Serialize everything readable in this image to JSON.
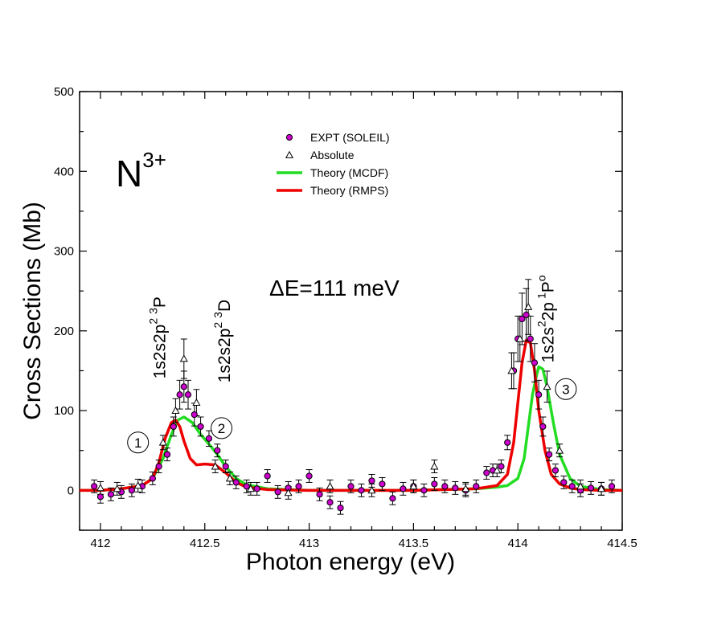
{
  "chart_data": {
    "type": "scatter",
    "title": "",
    "xlabel": "Photon energy (eV)",
    "ylabel": "Cross Sections (Mb)",
    "xlim": [
      411.9,
      414.5
    ],
    "ylim": [
      -50,
      500
    ],
    "x_ticks": [
      412,
      412.5,
      413,
      413.5,
      414,
      414.5
    ],
    "x_tick_labels": [
      "412",
      "412.5",
      "413",
      "413.5",
      "414",
      "414.5"
    ],
    "y_ticks": [
      0,
      100,
      200,
      300,
      400,
      500
    ],
    "y_tick_labels": [
      "0",
      "100",
      "200",
      "300",
      "400",
      "500"
    ],
    "ion_label": {
      "base": "N",
      "sup": "3+"
    },
    "resolution_label": "ΔE=111 meV",
    "annotations": [
      {
        "base": "1s2s2p",
        "sup1": "2",
        "sup2": "3",
        "term": "P",
        "x": 412.31,
        "y": 140
      },
      {
        "base": "1s2s2p",
        "sup1": "2",
        "sup2": "3",
        "term": "D",
        "x": 412.62,
        "y": 135
      },
      {
        "base": "1s2s",
        "sup1": "2",
        "mid": "2p",
        "sup2": "1",
        "term": "P",
        "sup3": "o",
        "x": 414.17,
        "y": 160
      }
    ],
    "peak_markers": [
      {
        "label": "1",
        "x": 412.18,
        "y": 60
      },
      {
        "label": "2",
        "x": 412.58,
        "y": 78
      },
      {
        "label": "3",
        "x": 414.23,
        "y": 127
      }
    ],
    "legend": {
      "position": "top-center",
      "entries": [
        {
          "label": "EXPT (SOLEIL)",
          "marker": "circle",
          "color": "#cc00cc"
        },
        {
          "label": "Absolute",
          "marker": "triangle",
          "color": "#000000"
        },
        {
          "label": "Theory (MCDF)",
          "marker": "line",
          "color": "#22dd22"
        },
        {
          "label": "Theory (RMPS)",
          "marker": "line",
          "color": "#ee0000"
        }
      ]
    },
    "series": [
      {
        "name": "EXPT (SOLEIL)",
        "kind": "points",
        "marker": "circle",
        "color": "#cc00cc",
        "x": [
          411.97,
          412.0,
          412.05,
          412.1,
          412.15,
          412.2,
          412.25,
          412.28,
          412.32,
          412.35,
          412.38,
          412.4,
          412.42,
          412.45,
          412.48,
          412.52,
          412.56,
          412.6,
          412.65,
          412.7,
          412.75,
          412.8,
          412.85,
          412.9,
          412.95,
          413.0,
          413.05,
          413.1,
          413.15,
          413.2,
          413.25,
          413.3,
          413.35,
          413.4,
          413.45,
          413.5,
          413.55,
          413.6,
          413.65,
          413.7,
          413.75,
          413.8,
          413.85,
          413.88,
          413.92,
          413.95,
          413.98,
          414.0,
          414.02,
          414.04,
          414.06,
          414.08,
          414.1,
          414.12,
          414.15,
          414.18,
          414.22,
          414.26,
          414.3,
          414.35,
          414.4,
          414.45
        ],
        "y": [
          5,
          -8,
          -5,
          -2,
          0,
          5,
          15,
          30,
          45,
          80,
          120,
          130,
          120,
          95,
          80,
          65,
          50,
          30,
          10,
          5,
          2,
          18,
          -2,
          3,
          5,
          18,
          -5,
          -15,
          -22,
          5,
          0,
          12,
          8,
          -10,
          2,
          5,
          0,
          8,
          5,
          3,
          0,
          5,
          22,
          25,
          30,
          60,
          150,
          190,
          215,
          220,
          190,
          160,
          120,
          80,
          45,
          25,
          10,
          5,
          0,
          3,
          2,
          5
        ]
      },
      {
        "name": "Absolute",
        "kind": "points",
        "marker": "triangle",
        "color": "#000000",
        "x": [
          412.0,
          412.08,
          412.18,
          412.3,
          412.36,
          412.4,
          412.46,
          412.55,
          412.62,
          412.72,
          412.9,
          413.1,
          413.3,
          413.5,
          413.6,
          413.75,
          413.9,
          413.97,
          414.01,
          414.05,
          414.14,
          414.2,
          414.3,
          414.4
        ],
        "y": [
          3,
          2,
          6,
          60,
          100,
          165,
          110,
          30,
          15,
          2,
          -3,
          5,
          0,
          5,
          30,
          2,
          25,
          150,
          190,
          230,
          130,
          50,
          5,
          2
        ]
      },
      {
        "name": "Theory (MCDF)",
        "kind": "line",
        "color": "#22dd22",
        "x": [
          411.9,
          412.0,
          412.1,
          412.2,
          412.25,
          412.3,
          412.34,
          412.37,
          412.4,
          412.44,
          412.48,
          412.52,
          412.56,
          412.6,
          412.65,
          412.7,
          412.8,
          413.0,
          413.5,
          413.8,
          413.9,
          413.95,
          414.0,
          414.03,
          414.05,
          414.07,
          414.09,
          414.1,
          414.12,
          414.14,
          414.17,
          414.2,
          414.25,
          414.3,
          414.4,
          414.5
        ],
        "y": [
          0,
          0,
          2,
          6,
          15,
          40,
          70,
          88,
          92,
          85,
          70,
          58,
          45,
          30,
          15,
          7,
          2,
          0,
          0,
          2,
          4,
          6,
          15,
          40,
          80,
          120,
          145,
          155,
          152,
          130,
          85,
          45,
          15,
          5,
          1,
          0
        ]
      },
      {
        "name": "Theory (RMPS)",
        "kind": "line",
        "color": "#ee0000",
        "x": [
          411.9,
          412.0,
          412.1,
          412.2,
          412.25,
          412.28,
          412.31,
          412.34,
          412.36,
          412.38,
          412.4,
          412.43,
          412.46,
          412.5,
          412.55,
          412.6,
          412.65,
          412.7,
          412.8,
          413.0,
          413.5,
          413.8,
          413.9,
          413.95,
          413.98,
          414.0,
          414.02,
          414.04,
          414.06,
          414.08,
          414.1,
          414.13,
          414.16,
          414.2,
          414.25,
          414.3,
          414.4,
          414.5
        ],
        "y": [
          0,
          0,
          2,
          6,
          15,
          35,
          65,
          85,
          88,
          80,
          62,
          40,
          32,
          33,
          32,
          22,
          10,
          4,
          1,
          0,
          0,
          2,
          6,
          20,
          60,
          110,
          160,
          188,
          185,
          150,
          100,
          50,
          20,
          8,
          3,
          1,
          0,
          0
        ]
      }
    ]
  }
}
